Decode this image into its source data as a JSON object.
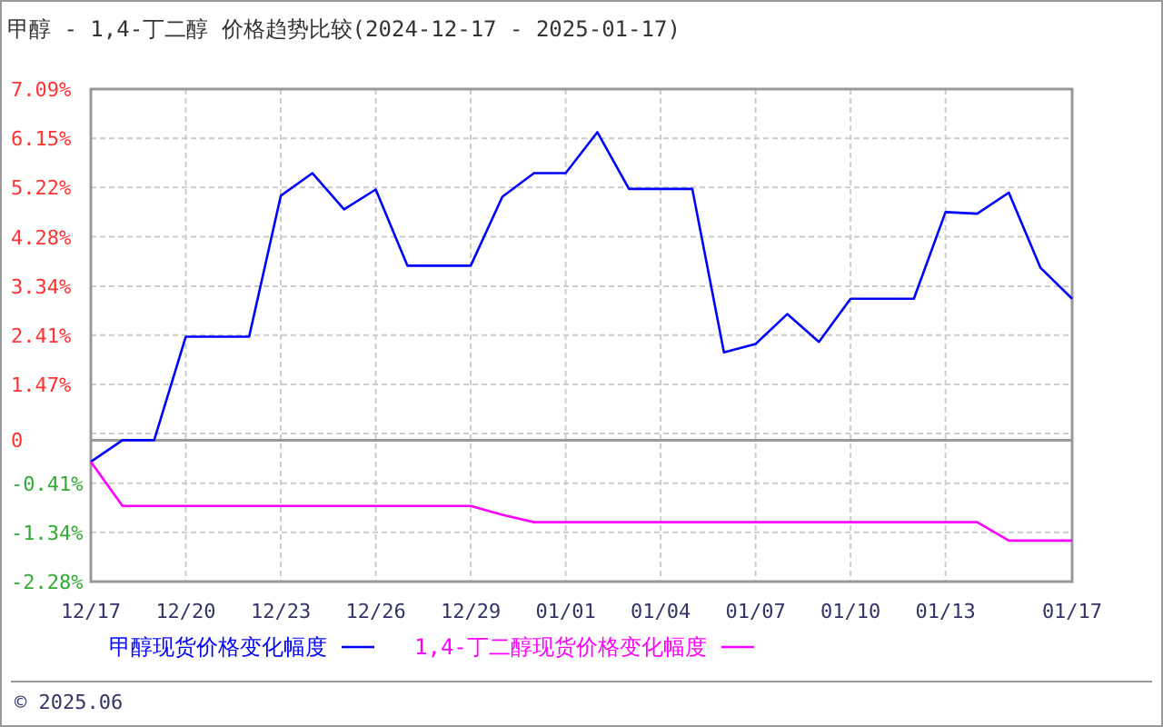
{
  "chart_data": {
    "type": "line",
    "title": "甲醇 - 1,4-丁二醇 价格趋势比较(2024-12-17 - 2025-01-17)",
    "x": [
      "2024-12-17",
      "2024-12-18",
      "2024-12-19",
      "2024-12-20",
      "2024-12-21",
      "2024-12-22",
      "2024-12-23",
      "2024-12-24",
      "2024-12-25",
      "2024-12-26",
      "2024-12-27",
      "2024-12-28",
      "2024-12-29",
      "2024-12-30",
      "2024-12-31",
      "2025-01-01",
      "2025-01-02",
      "2025-01-03",
      "2025-01-04",
      "2025-01-05",
      "2025-01-06",
      "2025-01-07",
      "2025-01-08",
      "2025-01-09",
      "2025-01-10",
      "2025-01-11",
      "2025-01-12",
      "2025-01-13",
      "2025-01-14",
      "2025-01-15",
      "2025-01-16",
      "2025-01-17"
    ],
    "series": [
      {
        "name": "甲醇现货价格变化幅度",
        "color": "#0000ff",
        "values": [
          0,
          0.41,
          0.41,
          2.38,
          2.38,
          2.38,
          5.06,
          5.49,
          4.8,
          5.18,
          3.73,
          3.73,
          3.73,
          5.04,
          5.49,
          5.49,
          6.27,
          5.19,
          5.19,
          5.19,
          2.08,
          2.24,
          2.81,
          2.28,
          3.1,
          3.1,
          3.1,
          4.75,
          4.72,
          5.12,
          3.69,
          3.1
        ]
      },
      {
        "name": "1,4-丁二醇现货价格变化幅度",
        "color": "#ff00ff",
        "values": [
          0,
          -0.84,
          -0.84,
          -0.84,
          -0.84,
          -0.84,
          -0.84,
          -0.84,
          -0.84,
          -0.84,
          -0.84,
          -0.84,
          -0.84,
          -1.01,
          -1.15,
          -1.15,
          -1.15,
          -1.15,
          -1.15,
          -1.15,
          -1.15,
          -1.15,
          -1.15,
          -1.15,
          -1.15,
          -1.15,
          -1.15,
          -1.15,
          -1.15,
          -1.5,
          -1.5,
          -1.5
        ]
      }
    ],
    "xlim": [
      "2024-12-17",
      "2025-01-17"
    ],
    "xticks": [
      {
        "value": "2024-12-17",
        "label": "12/17"
      },
      {
        "value": "2024-12-20",
        "label": "12/20"
      },
      {
        "value": "2024-12-23",
        "label": "12/23"
      },
      {
        "value": "2024-12-26",
        "label": "12/26"
      },
      {
        "value": "2024-12-29",
        "label": "12/29"
      },
      {
        "value": "2025-01-01",
        "label": "01/01"
      },
      {
        "value": "2025-01-04",
        "label": "01/04"
      },
      {
        "value": "2025-01-07",
        "label": "01/07"
      },
      {
        "value": "2025-01-10",
        "label": "01/10"
      },
      {
        "value": "2025-01-13",
        "label": "01/13"
      },
      {
        "value": "2025-01-17",
        "label": "01/17"
      }
    ],
    "ylim": [
      -2.28,
      7.09
    ],
    "yticks": [
      {
        "value": 7.09,
        "label": "7.09%"
      },
      {
        "value": 6.15,
        "label": "6.15%"
      },
      {
        "value": 5.22,
        "label": "5.22%"
      },
      {
        "value": 4.28,
        "label": "4.28%"
      },
      {
        "value": 3.34,
        "label": "3.34%"
      },
      {
        "value": 2.41,
        "label": "2.41%"
      },
      {
        "value": 1.47,
        "label": "1.47%"
      },
      {
        "value": 0.54,
        "label": null
      },
      {
        "value": 0.41,
        "label": "0"
      },
      {
        "value": -0.41,
        "label": "-0.41%"
      },
      {
        "value": -1.34,
        "label": "-1.34%"
      },
      {
        "value": -2.28,
        "label": "-2.28%"
      }
    ],
    "ref_lines": [
      {
        "axis": "y",
        "value": 0.41,
        "color": "#999999"
      }
    ],
    "grid": true,
    "legend": "bottom",
    "marker": "none",
    "line_style": "solid",
    "annotations": [
      "© 2025.06"
    ]
  }
}
